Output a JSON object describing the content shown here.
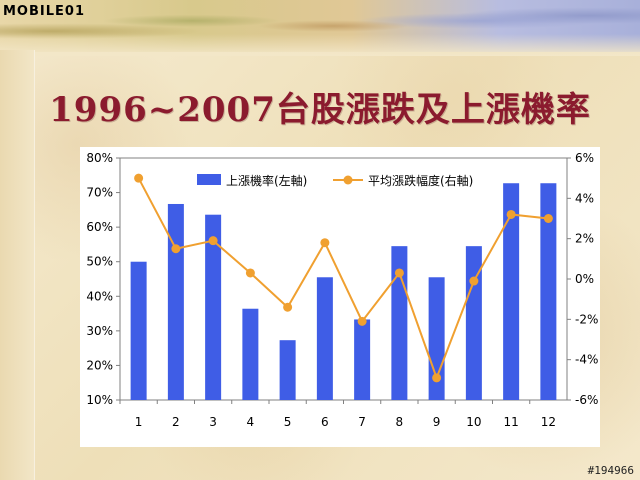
{
  "logo_text": "MOBILE01",
  "watermark": "#194966",
  "title": "1996~2007台股漲跌及上漲機率",
  "colors": {
    "bar": "#3f5de6",
    "line": "#f0a030",
    "title": "#8b1b2e"
  },
  "chart_data": {
    "type": "bar",
    "categories": [
      "1",
      "2",
      "3",
      "4",
      "5",
      "6",
      "7",
      "8",
      "9",
      "10",
      "11",
      "12"
    ],
    "series": [
      {
        "name": "上漲機率(左軸)",
        "type": "bar",
        "axis": "left",
        "values": [
          50,
          66.7,
          63.6,
          36.4,
          27.3,
          45.5,
          33.3,
          54.5,
          45.5,
          54.5,
          72.7,
          72.7
        ]
      },
      {
        "name": "平均漲跌幅度(右軸)",
        "type": "line",
        "axis": "right",
        "values": [
          5.0,
          1.5,
          1.9,
          0.3,
          -1.4,
          1.8,
          -2.1,
          0.3,
          -4.9,
          -0.1,
          3.2,
          3.0
        ]
      }
    ],
    "left_axis": {
      "min": 10,
      "max": 80,
      "ticks": [
        "10%",
        "20%",
        "30%",
        "40%",
        "50%",
        "60%",
        "70%",
        "80%"
      ]
    },
    "right_axis": {
      "min": -6,
      "max": 6,
      "ticks": [
        "-6%",
        "-4%",
        "-2%",
        "0%",
        "2%",
        "4%",
        "6%"
      ]
    },
    "legend_position": "top",
    "grid": false
  }
}
